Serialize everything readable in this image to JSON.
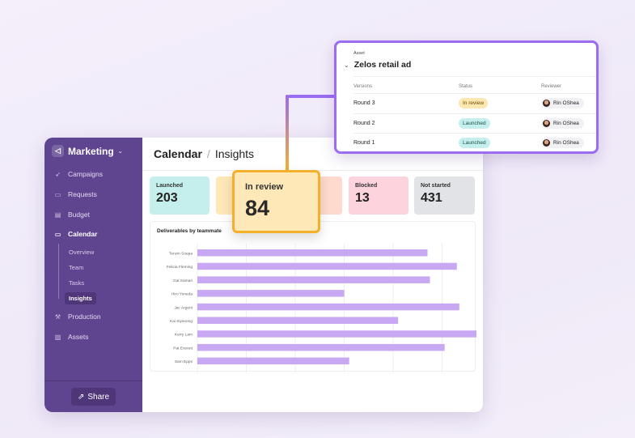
{
  "sidebar": {
    "workspace": "Marketing",
    "items": [
      {
        "label": "Campaigns",
        "icon": "rocket-icon"
      },
      {
        "label": "Requests",
        "icon": "inbox-icon"
      },
      {
        "label": "Budget",
        "icon": "ledger-icon"
      },
      {
        "label": "Calendar",
        "icon": "calendar-icon"
      },
      {
        "label": "Production",
        "icon": "wrench-icon"
      },
      {
        "label": "Assets",
        "icon": "image-icon"
      }
    ],
    "calendar_sub": [
      "Overview",
      "Team",
      "Tasks",
      "Insights"
    ],
    "share": "Share"
  },
  "header": {
    "title": "Calendar",
    "sep": "/",
    "sub": "Insights"
  },
  "stats": [
    {
      "label": "Launched",
      "value": "203",
      "color": "#c5efec"
    },
    {
      "label": "In review",
      "value": "84",
      "color": "#fee8b7"
    },
    {
      "label": "Blocked",
      "value": "13",
      "color": "#fdd3dd"
    },
    {
      "label": "Not started",
      "value": "431",
      "color": "#e2e3e7"
    }
  ],
  "asset": {
    "label": "Asset",
    "title": "Zelos retail ad",
    "columns": [
      "Versions",
      "Status",
      "Reviewer"
    ],
    "rows": [
      {
        "version": "Round 3",
        "status": "In review",
        "reviewer": "Rin OShea"
      },
      {
        "version": "Round 2",
        "status": "Launched",
        "reviewer": "Rin OShea"
      },
      {
        "version": "Round 1",
        "status": "Launched",
        "reviewer": "Rin OShea"
      }
    ]
  },
  "chart_data": {
    "type": "bar",
    "orientation": "horizontal",
    "title": "Deliverables by teammate",
    "categories": [
      "Tenzin Soepa",
      "Felicia Fleming",
      "Gal Samari",
      "Hiro Yoneda",
      "Jac Argent",
      "Kai Siyavong",
      "Kerry Lam",
      "Pat Everett",
      "Sam Epps"
    ],
    "values": [
      47,
      53,
      47.5,
      30,
      53.5,
      41,
      57,
      50.5,
      31
    ],
    "xlim": [
      0,
      57
    ],
    "grid": true,
    "bar_color": "#c8a8f3"
  }
}
